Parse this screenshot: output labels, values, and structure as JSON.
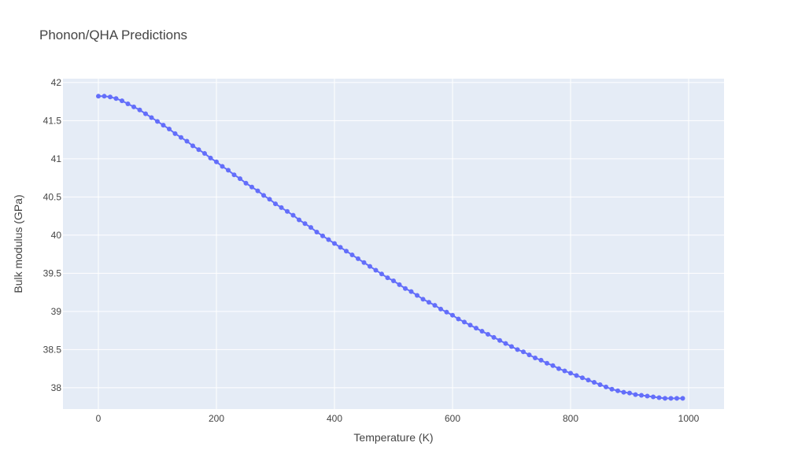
{
  "chart_data": {
    "type": "line",
    "title": "Phonon/QHA Predictions",
    "xlabel": "Temperature (K)",
    "ylabel": "Bulk modulus (GPa)",
    "xlim": [
      -60,
      1060
    ],
    "ylim": [
      37.72,
      42.05
    ],
    "xticks": [
      0,
      200,
      400,
      600,
      800,
      1000
    ],
    "yticks": [
      38,
      38.5,
      39,
      39.5,
      40,
      40.5,
      41,
      41.5,
      42
    ],
    "grid": true,
    "legend": "none",
    "colors": {
      "plot_bg": "#e5ecf6",
      "grid": "#ffffff",
      "series": "#636efa",
      "text": "#444444"
    },
    "series": [
      {
        "mode": "lines+markers",
        "x": [
          0,
          10,
          20,
          30,
          40,
          50,
          60,
          70,
          80,
          90,
          100,
          110,
          120,
          130,
          140,
          150,
          160,
          170,
          180,
          190,
          200,
          210,
          220,
          230,
          240,
          250,
          260,
          270,
          280,
          290,
          300,
          310,
          320,
          330,
          340,
          350,
          360,
          370,
          380,
          390,
          400,
          410,
          420,
          430,
          440,
          450,
          460,
          470,
          480,
          490,
          500,
          510,
          520,
          530,
          540,
          550,
          560,
          570,
          580,
          590,
          600,
          610,
          620,
          630,
          640,
          650,
          660,
          670,
          680,
          690,
          700,
          710,
          720,
          730,
          740,
          750,
          760,
          770,
          780,
          790,
          800,
          810,
          820,
          830,
          840,
          850,
          860,
          870,
          880,
          890,
          900,
          910,
          920,
          930,
          940,
          950,
          960,
          970,
          980,
          990
        ],
        "y": [
          41.82,
          41.82,
          41.81,
          41.79,
          41.76,
          41.72,
          41.68,
          41.64,
          41.59,
          41.54,
          41.49,
          41.44,
          41.39,
          41.33,
          41.28,
          41.23,
          41.17,
          41.12,
          41.07,
          41.01,
          40.96,
          40.9,
          40.85,
          40.79,
          40.74,
          40.68,
          40.63,
          40.58,
          40.52,
          40.47,
          40.41,
          40.36,
          40.31,
          40.26,
          40.2,
          40.15,
          40.1,
          40.04,
          39.99,
          39.94,
          39.89,
          39.84,
          39.79,
          39.74,
          39.69,
          39.64,
          39.59,
          39.54,
          39.49,
          39.44,
          39.4,
          39.35,
          39.3,
          39.26,
          39.21,
          39.16,
          39.12,
          39.08,
          39.03,
          38.99,
          38.95,
          38.9,
          38.86,
          38.82,
          38.78,
          38.74,
          38.7,
          38.66,
          38.62,
          38.58,
          38.54,
          38.5,
          38.47,
          38.43,
          38.39,
          38.36,
          38.32,
          38.29,
          38.25,
          38.22,
          38.19,
          38.16,
          38.13,
          38.1,
          38.07,
          38.04,
          38.01,
          37.98,
          37.96,
          37.94,
          37.93,
          37.91,
          37.9,
          37.89,
          37.88,
          37.87,
          37.86,
          37.86,
          37.86,
          37.86
        ]
      }
    ]
  }
}
